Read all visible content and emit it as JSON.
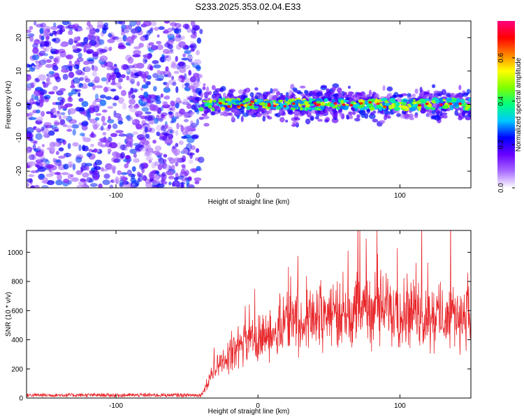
{
  "title": "S233.2025.353.02.04.E33",
  "chart_data": [
    {
      "type": "heatmap",
      "name": "spectrogram",
      "xlabel": "Height of straight line (km)",
      "ylabel": "Frequency (Hz)",
      "xlim": [
        -163,
        150
      ],
      "ylim": [
        -25,
        25
      ],
      "xticks": [
        -100,
        0,
        100
      ],
      "yticks": [
        -20,
        -10,
        0,
        10,
        20
      ],
      "colorbar": {
        "label": "Normalized spectral amplitude",
        "range": [
          0,
          0.77
        ],
        "ticks": [
          0.0,
          0.2,
          0.4,
          0.6
        ],
        "colormap": [
          "#ffffff",
          "#a86bff",
          "#6a00ff",
          "#0000ff",
          "#00c8ff",
          "#00ff7f",
          "#7fff00",
          "#ffff00",
          "#ff8000",
          "#ff0000",
          "#ff0080"
        ]
      },
      "regions": [
        {
          "x_range": [
            -163,
            -40
          ],
          "freq_range": [
            -25,
            25
          ],
          "description_amplitude": "low diffuse noise"
        },
        {
          "x_range": [
            -40,
            150
          ],
          "freq_range": [
            -5,
            5
          ],
          "center_freq": 0,
          "peak_amplitude": 0.75
        }
      ]
    },
    {
      "type": "line",
      "name": "snr",
      "xlabel": "Height of straight line (km)",
      "ylabel": "SNR (10 * v/v)",
      "xlim": [
        -163,
        150
      ],
      "ylim": [
        0,
        1150
      ],
      "xticks": [
        -100,
        0,
        100
      ],
      "yticks": [
        0,
        200,
        400,
        600,
        800,
        1000
      ],
      "color": "#e8262a",
      "series": [
        {
          "name": "SNR",
          "x": [
            -163,
            -40,
            -30,
            -20,
            -10,
            0,
            10,
            20,
            30,
            40,
            60,
            80,
            100,
            120,
            140,
            150
          ],
          "values": [
            20,
            20,
            200,
            300,
            380,
            420,
            450,
            520,
            540,
            560,
            600,
            620,
            600,
            560,
            570,
            560
          ]
        }
      ]
    }
  ]
}
